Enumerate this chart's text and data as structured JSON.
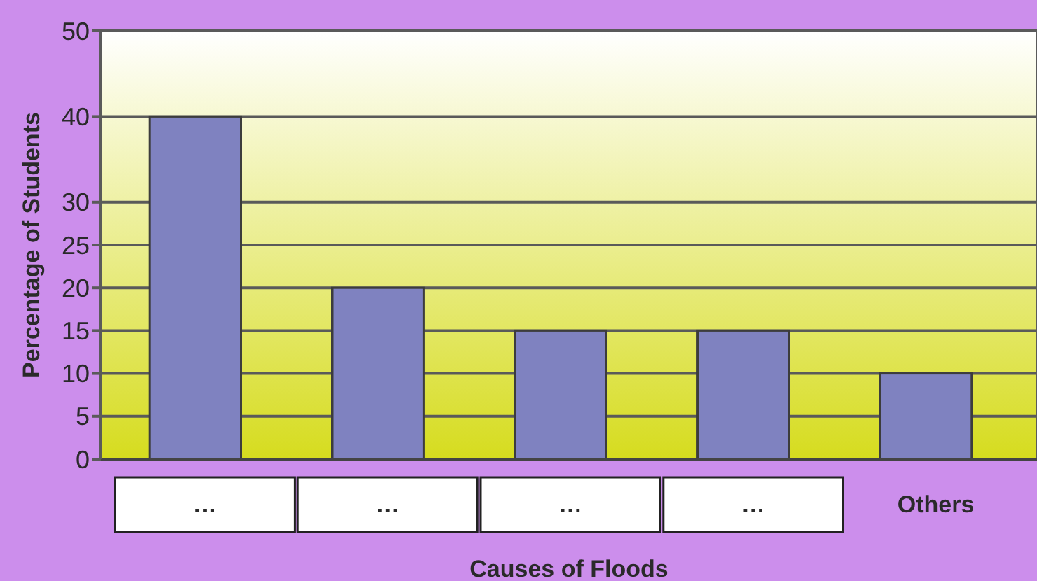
{
  "chart_data": {
    "type": "bar",
    "xlabel": "Causes of Floods",
    "ylabel": "Percentage of Students",
    "categories": [
      "…",
      "…",
      "…",
      "…",
      "Others"
    ],
    "values": [
      40,
      20,
      15,
      15,
      10
    ],
    "color": "#7f82c0",
    "ylim": [
      0,
      50
    ],
    "yticks": [
      0,
      5,
      10,
      15,
      20,
      25,
      30,
      40,
      50
    ],
    "grid": "y"
  }
}
